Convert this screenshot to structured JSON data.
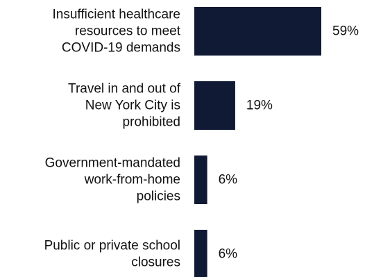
{
  "chart_data": {
    "type": "bar",
    "orientation": "horizontal",
    "categories": [
      [
        "Insufficient healthcare",
        "resources to meet",
        "COVID-19 demands"
      ],
      [
        "Travel in and out of",
        "New York City is",
        "prohibited"
      ],
      [
        "Government-mandated",
        "work-from-home",
        "policies"
      ],
      [
        "Public or private school",
        "closures"
      ]
    ],
    "values": [
      59,
      19,
      6,
      6
    ],
    "value_labels": [
      "59%",
      "19%",
      "6%",
      "6%"
    ],
    "title": "",
    "xlabel": "",
    "ylabel": "",
    "xlim": [
      0,
      59
    ],
    "grid": false,
    "colors": {
      "bar": "#111a35",
      "text": "#111111"
    }
  }
}
